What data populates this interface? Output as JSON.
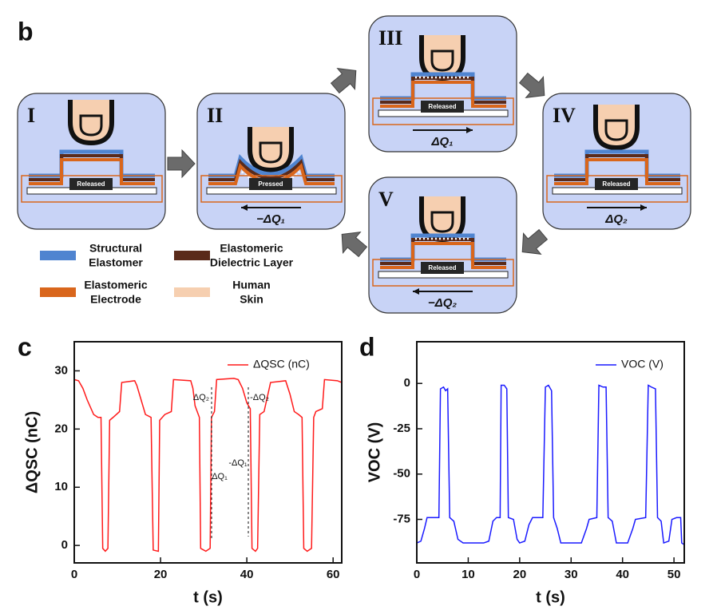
{
  "figure": {
    "panel_labels": [
      "b",
      "c",
      "d"
    ],
    "stages": [
      {
        "numeral": "I",
        "state": "Released"
      },
      {
        "numeral": "II",
        "state": "Pressed",
        "charge": "−ΔQ₁"
      },
      {
        "numeral": "III",
        "state": "Released",
        "charge": "ΔQ₁"
      },
      {
        "numeral": "IV",
        "state": "Released",
        "charge": "ΔQ₂"
      },
      {
        "numeral": "V",
        "state": "Released",
        "charge": "−ΔQ₂"
      }
    ],
    "legend": [
      {
        "lines": [
          "Structural",
          "Elastomer"
        ],
        "color": "#4f84d0"
      },
      {
        "lines": [
          "Elastomeric",
          "Dielectric Layer"
        ],
        "color": "#5a2a1a"
      },
      {
        "lines": [
          "Elastomeric",
          "Electrode"
        ],
        "color": "#d9661c"
      },
      {
        "lines": [
          "Human",
          "Skin"
        ],
        "color": "#f6cfb0"
      }
    ],
    "annotations": [
      "ΔQ₂",
      "-ΔQ₂",
      "ΔQ₁",
      "-ΔQ₁"
    ]
  },
  "chart_data": [
    {
      "type": "line",
      "x_label": "t (s)",
      "y_label": "ΔQSC (nC)",
      "xlim": [
        0,
        62
      ],
      "ylim": [
        -3,
        35
      ],
      "xticks": [
        0,
        20,
        40,
        60
      ],
      "yticks": [
        0,
        10,
        20,
        30
      ],
      "x": [
        0,
        1,
        2,
        3,
        4.5,
        5.5,
        6.2,
        6.6,
        7.2,
        7.8,
        8.2,
        9,
        10.5,
        11,
        14,
        14.5,
        15.5,
        16.5,
        17.8,
        18.3,
        19.5,
        19.8,
        21,
        22.5,
        23,
        27,
        27.5,
        28,
        29,
        29.3,
        30.5,
        31.5,
        31.8,
        32.5,
        33,
        37,
        38,
        39,
        40,
        40.8,
        41.2,
        42,
        42.5,
        43,
        44,
        45.5,
        49,
        50,
        51,
        52,
        52.8,
        53.2,
        54,
        55,
        55.5,
        56,
        57.5,
        58,
        61,
        62
      ],
      "series": [
        {
          "name": "ΔQSC (nC)",
          "color": "#ff1a1a",
          "values": [
            28.5,
            28.3,
            27,
            25,
            22.5,
            22,
            22,
            -0.5,
            -1,
            -0.5,
            21.5,
            22,
            23,
            28,
            28.3,
            27.5,
            25,
            22.5,
            22,
            -0.8,
            -1,
            21.5,
            22.5,
            23,
            28.5,
            28.3,
            27,
            24,
            22,
            -0.5,
            -1,
            -0.5,
            22,
            23,
            28.5,
            28.7,
            28.5,
            27,
            24.5,
            23.5,
            -0.5,
            -1,
            -0.5,
            22.5,
            23,
            28,
            28.3,
            26,
            23,
            22.5,
            22,
            -0.5,
            -1,
            -0.5,
            22,
            23,
            23.5,
            28.5,
            28.3,
            28
          ]
        }
      ]
    },
    {
      "type": "line",
      "x_label": "t (s)",
      "y_label": "VOC (V)",
      "xlim": [
        0,
        52
      ],
      "ylim": [
        -99,
        23
      ],
      "xticks": [
        0,
        10,
        20,
        30,
        40,
        50
      ],
      "yticks": [
        0,
        -25,
        -50,
        -75
      ],
      "x": [
        0,
        0.8,
        1.5,
        2,
        3.5,
        4.3,
        4.6,
        5.2,
        5.6,
        6,
        6.4,
        7.2,
        8,
        9,
        13,
        14,
        14.8,
        15.5,
        16.2,
        16.4,
        17,
        17.5,
        17.8,
        18.8,
        19.5,
        20,
        21,
        21.8,
        22.5,
        24.5,
        25,
        25.6,
        26.2,
        26.6,
        27.3,
        28,
        32,
        33,
        33.5,
        35,
        35.4,
        36.2,
        36.8,
        37.2,
        38,
        38.8,
        41,
        42,
        42.5,
        44.5,
        45,
        45.6,
        46.4,
        46.8,
        47.5,
        48,
        49,
        49.6,
        50.5,
        51.3,
        51.5,
        52
      ],
      "series": [
        {
          "name": "VOC (V)",
          "color": "#1a1aff",
          "values": [
            -88,
            -87,
            -80,
            -74,
            -74,
            -74,
            -3,
            -2,
            -4,
            -3,
            -74,
            -76,
            -86,
            -88,
            -88,
            -87,
            -76,
            -74,
            -74,
            -1,
            -1,
            -3,
            -74,
            -75,
            -86,
            -88,
            -87,
            -78,
            -74,
            -74,
            -2,
            -1,
            -4,
            -74,
            -80,
            -88,
            -88,
            -80,
            -75,
            -74,
            -1,
            -2,
            -2,
            -74,
            -76,
            -88,
            -88,
            -80,
            -75,
            -74,
            -1,
            -2,
            -3,
            -74,
            -76,
            -88,
            -87,
            -75,
            -74,
            -74,
            -88,
            -89
          ]
        }
      ]
    }
  ]
}
